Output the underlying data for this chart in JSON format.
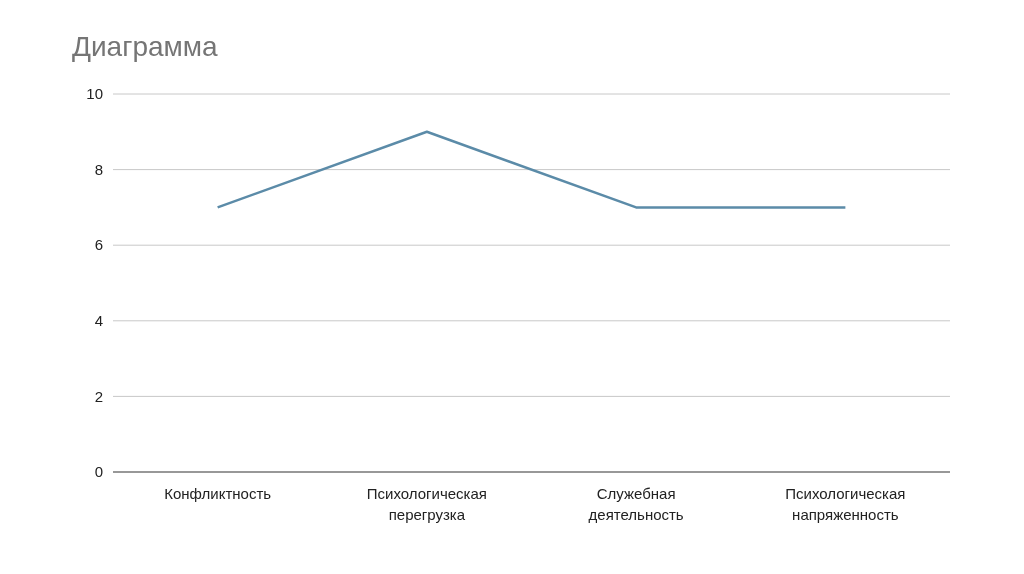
{
  "chart_data": {
    "type": "line",
    "title": "Диаграмма",
    "categories": [
      "Конфликтность",
      "Психологическая перегрузка",
      "Служебная деятельность",
      "Психологическая напряженность"
    ],
    "series": [
      {
        "color": "#5b8ba8",
        "values": [
          7,
          9,
          7,
          7
        ]
      }
    ],
    "ylim": [
      0,
      10
    ],
    "yticks": [
      0,
      2,
      4,
      6,
      8,
      10
    ],
    "grid": "y",
    "marker": "none",
    "line_style": "solid"
  }
}
